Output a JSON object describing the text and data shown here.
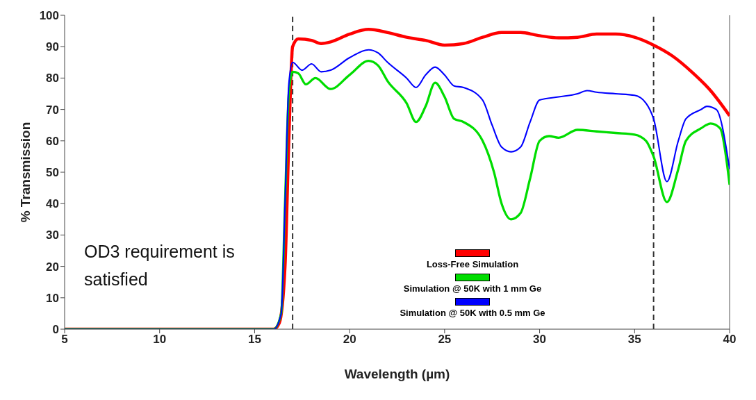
{
  "chart_data": {
    "type": "line",
    "xlabel": "Wavelength (µm)",
    "ylabel": "% Transmission",
    "xlim": [
      5,
      40
    ],
    "xticks": [
      5,
      10,
      15,
      20,
      25,
      30,
      35,
      40
    ],
    "ylim": [
      0,
      100
    ],
    "yticks": [
      0,
      10,
      20,
      30,
      40,
      50,
      60,
      70,
      80,
      90,
      100
    ],
    "grid": false,
    "legend": "bottom right",
    "marker": "none",
    "line_style": "solid",
    "annotations": [
      "OD3 requirement is satisfied"
    ],
    "ref_lines": [
      {
        "axis": "x",
        "value": 17,
        "label": null,
        "color": "#333333",
        "line_style": "dashed"
      },
      {
        "axis": "x",
        "value": 36,
        "label": null,
        "color": "#333333",
        "line_style": "dashed"
      }
    ],
    "series": [
      {
        "name": "Loss-Free Simulation",
        "color": "#ff0000",
        "x": [
          5,
          16,
          16.3,
          16.6,
          16.8,
          17,
          17.3,
          18,
          18.5,
          19,
          20,
          21,
          22,
          23,
          24,
          25,
          26,
          27,
          28,
          29,
          30,
          31,
          32,
          33,
          34,
          35,
          36,
          37,
          38,
          39,
          40
        ],
        "values": [
          0,
          0,
          2,
          20,
          60,
          90,
          92.5,
          92,
          91,
          91.5,
          94,
          95.5,
          94.5,
          93,
          92,
          90.5,
          91,
          93,
          94.5,
          94.5,
          93.5,
          92.8,
          93,
          94,
          94,
          93,
          90.5,
          87,
          82,
          76,
          68
        ]
      },
      {
        "name": "Simulation @ 50K with 1 mm Ge",
        "color": "#00dd00",
        "x": [
          5,
          16,
          16.4,
          16.6,
          16.8,
          17,
          17.3,
          17.7,
          18.2,
          19,
          20,
          21,
          21.5,
          22,
          23,
          23.5,
          24,
          24.5,
          25,
          25.5,
          26,
          27,
          27.6,
          28,
          28.5,
          29,
          29.5,
          30,
          30.5,
          31,
          32,
          33,
          34,
          35,
          35.6,
          36,
          36.7,
          37.3,
          37.7,
          38.5,
          39,
          39.5,
          40
        ],
        "values": [
          0,
          0,
          5,
          40,
          75,
          82,
          81.5,
          78,
          80,
          76.5,
          81,
          85.5,
          84,
          79,
          72,
          66,
          71,
          78.5,
          74,
          67,
          66,
          60,
          50,
          40,
          35,
          37,
          48,
          60,
          61.5,
          61,
          63.5,
          63,
          62.5,
          62,
          60,
          55,
          40.5,
          51,
          60,
          64,
          65.5,
          64,
          46
        ]
      },
      {
        "name": "Simulation @ 50K with 0.5 mm Ge",
        "color": "#0000ff",
        "x": [
          5,
          16,
          16.4,
          16.6,
          16.8,
          17,
          17.5,
          18,
          18.5,
          19,
          20,
          21,
          21.5,
          22,
          23,
          23.5,
          24,
          24.5,
          25,
          25.5,
          26,
          27,
          27.5,
          28,
          28.5,
          29,
          29.5,
          30,
          31,
          32,
          32.5,
          33,
          34,
          35,
          35.6,
          36,
          36.7,
          37.3,
          37.7,
          38.5,
          38.8,
          39.3,
          40
        ],
        "values": [
          0,
          0,
          5,
          40,
          78,
          85,
          82.5,
          84.5,
          82,
          82.5,
          86.5,
          89,
          88,
          85,
          80,
          77,
          81,
          83.5,
          81,
          77.5,
          77,
          73,
          65,
          58,
          56.5,
          58,
          66,
          73,
          74,
          75,
          76,
          75.5,
          75,
          74.5,
          72,
          67,
          47,
          60,
          67,
          70,
          71,
          70,
          51
        ]
      }
    ]
  }
}
